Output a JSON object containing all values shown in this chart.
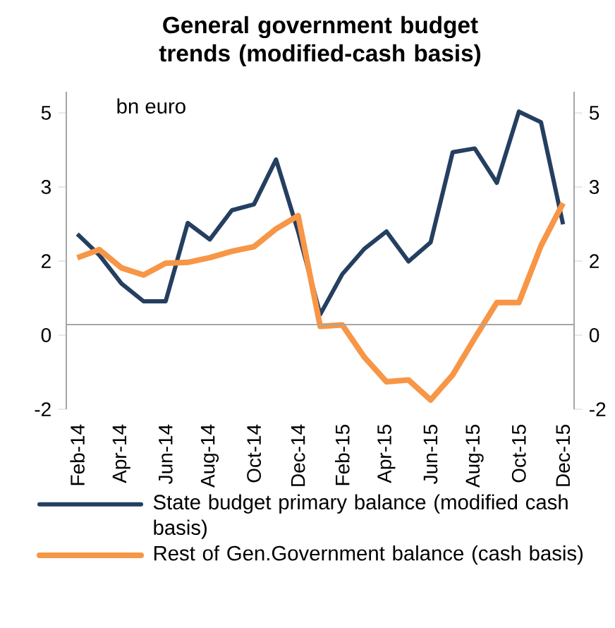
{
  "chart_data": {
    "type": "line",
    "title": "General government budget trends (modified-cash basis)",
    "annotations": [
      "bn euro"
    ],
    "categories": [
      "Feb-14",
      null,
      "Apr-14",
      null,
      "Jun-14",
      null,
      "Aug-14",
      null,
      "Oct-14",
      null,
      "Dec-14",
      null,
      "Feb-15",
      null,
      "Apr-15",
      null,
      "Jun-15",
      null,
      "Aug-15",
      null,
      "Oct-15",
      null,
      "Dec-15"
    ],
    "series": [
      {
        "name": "State budget primary balance (modified cash basis)",
        "color": "#243f60",
        "values": [
          2.14,
          1.64,
          0.97,
          0.55,
          0.55,
          2.4,
          2.01,
          2.7,
          2.84,
          3.9,
          2.2,
          0.24,
          1.19,
          1.79,
          2.2,
          1.49,
          1.94,
          4.07,
          4.16,
          3.35,
          5.03,
          4.78,
          2.37
        ]
      },
      {
        "name": "Rest of Gen.Government balance (cash basis)",
        "color": "#f79646",
        "values": [
          1.58,
          1.77,
          1.34,
          1.17,
          1.45,
          1.47,
          1.58,
          1.73,
          1.84,
          2.26,
          2.57,
          -0.04,
          -0.01,
          -0.77,
          -1.35,
          -1.31,
          -1.78,
          -1.19,
          -0.32,
          0.52,
          0.52,
          1.86,
          2.87
        ]
      }
    ],
    "ylim": [
      -2,
      5.5
    ],
    "yticks": [
      -2,
      {
        "value": -0.25,
        "label": "0"
      },
      {
        "value": 1.5,
        "label": "2"
      },
      {
        "value": 3.25,
        "label": "3"
      },
      5
    ],
    "y2lim": [
      -2,
      5.5
    ],
    "y2ticks": [
      -2,
      {
        "value": -0.25,
        "label": "0"
      },
      {
        "value": 1.5,
        "label": "2"
      },
      {
        "value": 3.25,
        "label": "3"
      },
      5
    ],
    "legend": "bottom",
    "grid": false,
    "marker": "none",
    "line_style": "solid"
  }
}
